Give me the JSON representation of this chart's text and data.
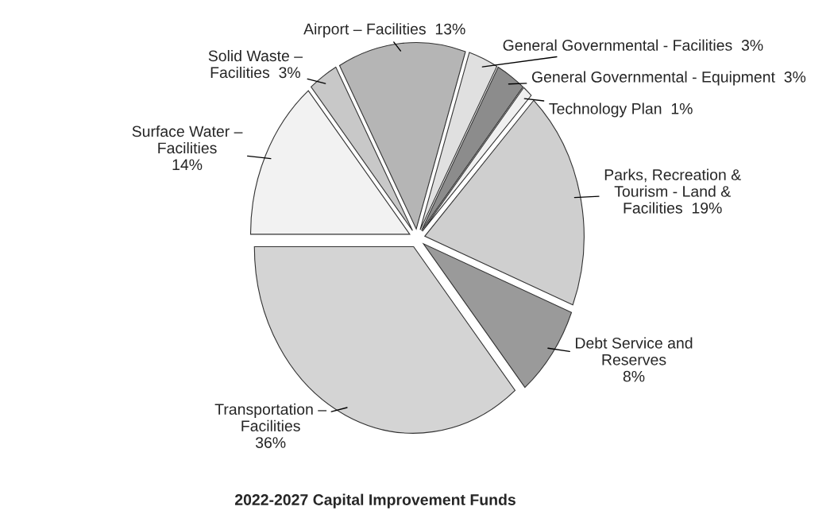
{
  "chart_data": {
    "type": "pie",
    "title": "2022-2027 Capital Improvement Funds",
    "categories": [
      "Transportation –\nFacilities\n36%",
      "Debt Service and\nReserves\n8%",
      "Parks, Recreation &\nTourism - Land &\nFacilities  19%",
      "Technology Plan  1%",
      "General Governmental - Equipment  3%",
      "General Governmental - Facilities  3%",
      "Airport – Facilities  13%",
      "Solid Waste –\nFacilities  3%",
      "Surface Water –\nFacilities\n14%"
    ],
    "values": [
      36,
      8,
      19,
      1,
      3,
      3,
      13,
      3,
      14
    ],
    "colors": [
      "#d4d4d4",
      "#9a9a9a",
      "#cfcfcf",
      "#f0f0f0",
      "#8c8c8c",
      "#e0e0e0",
      "#b5b5b5",
      "#c8c8c8",
      "#f2f2f2"
    ]
  }
}
